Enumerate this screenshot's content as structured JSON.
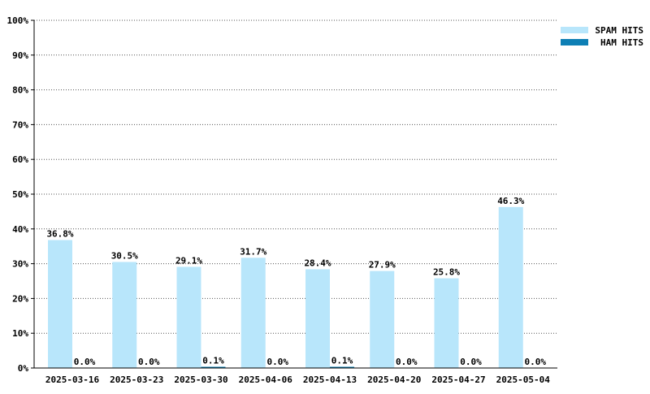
{
  "chart_data": {
    "type": "bar",
    "categories": [
      "2025-03-16",
      "2025-03-23",
      "2025-03-30",
      "2025-04-06",
      "2025-04-13",
      "2025-04-20",
      "2025-04-27",
      "2025-05-04"
    ],
    "series": [
      {
        "name": "SPAM HITS",
        "color": "#b8e6fb",
        "values": [
          36.8,
          30.5,
          29.1,
          31.7,
          28.4,
          27.9,
          25.8,
          46.3
        ],
        "labels": [
          "36.8%",
          "30.5%",
          "29.1%",
          "31.7%",
          "28.4%",
          "27.9%",
          "25.8%",
          "46.3%"
        ]
      },
      {
        "name": "HAM HITS",
        "color": "#0e7fb5",
        "values": [
          0.0,
          0.0,
          0.1,
          0.0,
          0.1,
          0.0,
          0.0,
          0.0
        ],
        "labels": [
          "0.0%",
          "0.0%",
          "0.1%",
          "0.0%",
          "0.1%",
          "0.0%",
          "0.0%",
          "0.0%"
        ]
      }
    ],
    "ylim": [
      0,
      100
    ],
    "yticks": [
      "0%",
      "10%",
      "20%",
      "30%",
      "40%",
      "50%",
      "60%",
      "70%",
      "80%",
      "90%",
      "100%"
    ],
    "grid": true,
    "legend_position": "top-right"
  }
}
